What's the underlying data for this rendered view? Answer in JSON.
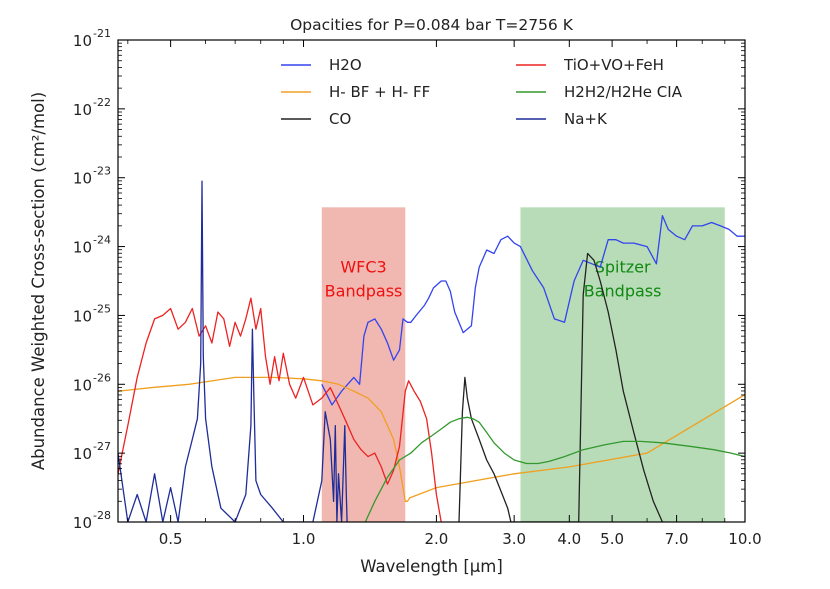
{
  "chart_data": {
    "type": "line",
    "title": "Opacities for P=0.084 bar T=2756 K",
    "xlabel": "Wavelength [μm]",
    "ylabel": "Abundance Weighted Cross-section (cm²/mol)",
    "x_scale": "log",
    "y_scale": "log",
    "xlim": [
      0.38,
      10.0
    ],
    "ylim_exp": [
      -28,
      -21
    ],
    "x_ticks": [
      {
        "value": 0.5,
        "label": "0.5"
      },
      {
        "value": 1.0,
        "label": "1.0"
      },
      {
        "value": 2.0,
        "label": "2.0"
      },
      {
        "value": 3.0,
        "label": "3.0"
      },
      {
        "value": 4.0,
        "label": "4.0"
      },
      {
        "value": 5.0,
        "label": "5.0"
      },
      {
        "value": 7.0,
        "label": "7.0"
      },
      {
        "value": 10.0,
        "label": "10.0"
      }
    ],
    "y_ticks": [
      {
        "exp": -21,
        "base": "10",
        "sup": "-21"
      },
      {
        "exp": -22,
        "base": "10",
        "sup": "-22"
      },
      {
        "exp": -23,
        "base": "10",
        "sup": "-23"
      },
      {
        "exp": -24,
        "base": "10",
        "sup": "-24"
      },
      {
        "exp": -25,
        "base": "10",
        "sup": "-25"
      },
      {
        "exp": -26,
        "base": "10",
        "sup": "-26"
      },
      {
        "exp": -27,
        "base": "10",
        "sup": "-27"
      },
      {
        "exp": -28,
        "base": "10",
        "sup": "-28"
      }
    ],
    "bands": [
      {
        "name": "WFC3",
        "label_lines": [
          "WFC3",
          "Bandpass"
        ],
        "x_range": [
          1.1,
          1.7
        ],
        "y_top_exp": -23.43,
        "color": "#f0b8b0",
        "text_color": "#ee1111"
      },
      {
        "name": "Spitzer",
        "label_lines": [
          "Spitzer",
          "Bandpass"
        ],
        "x_range": [
          3.1,
          9.0
        ],
        "y_top_exp": -23.43,
        "color": "#b8dcb8",
        "text_color": "#118811"
      }
    ],
    "legend": {
      "position": "top-center"
    },
    "series": [
      {
        "name": "H2O",
        "color": "#3344ee",
        "x": [
          1.1,
          1.16,
          1.22,
          1.3,
          1.34,
          1.37,
          1.4,
          1.45,
          1.5,
          1.55,
          1.6,
          1.65,
          1.68,
          1.72,
          1.75,
          1.8,
          1.88,
          1.92,
          1.97,
          2.05,
          2.1,
          2.15,
          2.2,
          2.3,
          2.4,
          2.45,
          2.5,
          2.6,
          2.7,
          2.8,
          2.9,
          3.0,
          3.1,
          3.3,
          3.5,
          3.7,
          3.9,
          4.1,
          4.3,
          4.5,
          4.7,
          4.9,
          5.1,
          5.3,
          5.6,
          6.0,
          6.3,
          6.5,
          6.7,
          7.0,
          7.3,
          7.6,
          8.0,
          8.4,
          8.8,
          9.2,
          9.6,
          10.0
        ],
        "y_exp": [
          -26.0,
          -26.3,
          -26.1,
          -25.9,
          -26.0,
          -25.3,
          -25.1,
          -25.05,
          -25.2,
          -25.4,
          -25.65,
          -25.5,
          -25.05,
          -25.1,
          -25.1,
          -25.0,
          -24.85,
          -24.75,
          -24.6,
          -24.5,
          -24.5,
          -24.65,
          -24.95,
          -25.25,
          -25.15,
          -24.6,
          -24.3,
          -24.05,
          -24.1,
          -23.9,
          -23.85,
          -23.95,
          -24.0,
          -24.35,
          -24.6,
          -25.05,
          -25.1,
          -24.5,
          -24.2,
          -24.25,
          -24.3,
          -23.9,
          -23.9,
          -23.95,
          -23.95,
          -24.0,
          -24.25,
          -23.55,
          -23.75,
          -23.85,
          -23.9,
          -23.7,
          -23.7,
          -23.65,
          -23.7,
          -23.75,
          -23.85,
          -23.85
        ]
      },
      {
        "name": "H- BF + H- FF",
        "color": "#f0a020",
        "x": [
          0.38,
          0.45,
          0.55,
          0.7,
          0.85,
          1.0,
          1.1,
          1.2,
          1.3,
          1.4,
          1.5,
          1.6,
          1.65,
          1.68,
          1.7,
          1.72,
          1.74,
          2.0,
          3.0,
          4.0,
          6.0,
          10.0
        ],
        "y_exp": [
          -26.1,
          -26.05,
          -26.0,
          -25.9,
          -25.9,
          -25.92,
          -25.95,
          -26.0,
          -26.1,
          -26.2,
          -26.4,
          -26.8,
          -27.2,
          -27.5,
          -27.7,
          -27.7,
          -27.65,
          -27.5,
          -27.3,
          -27.2,
          -27.0,
          -26.15
        ]
      },
      {
        "name": "CO",
        "color": "#222222",
        "x": [
          2.25,
          2.29,
          2.32,
          2.35,
          2.4,
          2.5,
          2.6,
          2.7,
          2.8,
          2.9,
          2.95,
          4.2,
          4.3,
          4.4,
          4.55,
          4.7,
          4.9,
          5.1,
          5.3,
          5.6,
          5.9,
          6.2,
          6.5
        ],
        "y_exp": [
          -28.0,
          -26.4,
          -25.9,
          -26.2,
          -26.5,
          -26.8,
          -27.1,
          -27.3,
          -27.55,
          -27.8,
          -28.0,
          -28.0,
          -24.7,
          -24.1,
          -24.2,
          -24.5,
          -24.95,
          -25.5,
          -26.1,
          -26.7,
          -27.25,
          -27.7,
          -28.0
        ]
      },
      {
        "name": "TiO+VO+FeH",
        "color": "#ee2222",
        "x": [
          0.38,
          0.4,
          0.42,
          0.44,
          0.46,
          0.48,
          0.5,
          0.52,
          0.54,
          0.56,
          0.58,
          0.6,
          0.62,
          0.64,
          0.66,
          0.68,
          0.7,
          0.72,
          0.74,
          0.76,
          0.78,
          0.8,
          0.82,
          0.84,
          0.86,
          0.88,
          0.9,
          0.93,
          0.96,
          1.0,
          1.05,
          1.1,
          1.15,
          1.2,
          1.25,
          1.3,
          1.35,
          1.4,
          1.45,
          1.5,
          1.55,
          1.6,
          1.65,
          1.7,
          1.73,
          1.78,
          1.84,
          1.9,
          1.95,
          2.0,
          2.05
        ],
        "y_exp": [
          -27.3,
          -26.6,
          -25.9,
          -25.4,
          -25.05,
          -25.0,
          -24.9,
          -25.2,
          -25.1,
          -24.9,
          -25.3,
          -25.15,
          -25.4,
          -24.95,
          -25.05,
          -25.45,
          -25.1,
          -25.3,
          -25.05,
          -24.75,
          -25.2,
          -24.9,
          -25.6,
          -26.0,
          -25.6,
          -25.95,
          -25.55,
          -26.0,
          -26.2,
          -25.9,
          -26.3,
          -26.2,
          -26.05,
          -26.3,
          -26.55,
          -26.8,
          -26.95,
          -27.05,
          -27.0,
          -27.2,
          -27.45,
          -27.25,
          -26.9,
          -26.1,
          -25.95,
          -26.1,
          -26.25,
          -26.5,
          -27.0,
          -27.6,
          -28.0
        ]
      },
      {
        "name": "H2H2/H2He CIA",
        "color": "#33992e",
        "x": [
          1.38,
          1.45,
          1.55,
          1.65,
          1.75,
          1.85,
          1.95,
          2.05,
          2.15,
          2.25,
          2.35,
          2.42,
          2.5,
          2.6,
          2.7,
          2.85,
          3.0,
          3.2,
          3.4,
          3.6,
          3.9,
          4.3,
          4.8,
          5.3,
          5.8,
          6.5,
          7.5,
          8.5,
          9.3,
          10.0
        ],
        "y_exp": [
          -28.0,
          -27.7,
          -27.35,
          -27.1,
          -27.0,
          -26.85,
          -26.75,
          -26.65,
          -26.55,
          -26.5,
          -26.48,
          -26.5,
          -26.55,
          -26.7,
          -26.85,
          -27.0,
          -27.1,
          -27.15,
          -27.15,
          -27.12,
          -27.05,
          -26.95,
          -26.88,
          -26.83,
          -26.83,
          -26.85,
          -26.9,
          -26.95,
          -27.0,
          -27.05
        ]
      },
      {
        "name": "Na+K",
        "color": "#1f2c99",
        "x": [
          0.38,
          0.4,
          0.42,
          0.44,
          0.46,
          0.48,
          0.5,
          0.52,
          0.54,
          0.56,
          0.575,
          0.585,
          0.589,
          0.593,
          0.6,
          0.62,
          0.65,
          0.7,
          0.74,
          0.76,
          0.766,
          0.772,
          0.78,
          0.8,
          0.85,
          0.9,
          1.0,
          1.05,
          1.1,
          1.12,
          1.15,
          1.17,
          1.18,
          1.19,
          1.2,
          1.22,
          1.24,
          1.25,
          1.255,
          1.26
        ],
        "y_exp": [
          -27.0,
          -28.0,
          -27.6,
          -28.0,
          -27.3,
          -28.0,
          -27.5,
          -28.0,
          -27.2,
          -26.8,
          -26.5,
          -25.7,
          -23.05,
          -25.6,
          -26.5,
          -27.2,
          -27.8,
          -28.0,
          -27.6,
          -26.6,
          -25.2,
          -26.2,
          -27.4,
          -27.6,
          -27.8,
          -28.0,
          -28.0,
          -28.0,
          -27.4,
          -26.4,
          -26.8,
          -27.7,
          -26.6,
          -28.0,
          -27.3,
          -28.0,
          -26.6,
          -27.6,
          -28.0,
          -28.0
        ]
      }
    ]
  }
}
